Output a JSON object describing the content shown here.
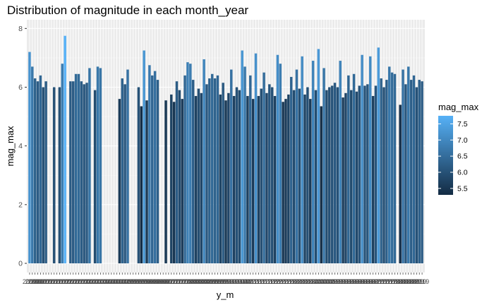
{
  "chart_data": {
    "type": "bar",
    "title": "Distribution of magnitude in each month_year",
    "xlabel": "y_m",
    "ylabel": "mag_max",
    "ylim": [
      0,
      8.2
    ],
    "yticks": [
      0,
      2,
      4,
      6,
      8
    ],
    "x_tick_labels_note_text": "2000 … 2019",
    "x_first_tick_label": "2000",
    "x_last_tick_label": "2019",
    "grid": true,
    "legend_position": "right",
    "legend": {
      "title": "mag_max",
      "ticks": [
        5.5,
        6.0,
        6.5,
        7.0,
        7.5
      ],
      "tick_labels": [
        "5.5",
        "6.0",
        "6.5",
        "7.0",
        "7.5"
      ],
      "range": [
        5.3,
        7.75
      ],
      "color_low": "#132B43",
      "color_high": "#56B1F7"
    },
    "values": [
      7.2,
      6.7,
      6.3,
      6.2,
      6.4,
      6.0,
      6.2,
      null,
      null,
      6.0,
      null,
      6.0,
      6.8,
      7.75,
      null,
      6.2,
      6.2,
      6.45,
      6.45,
      6.2,
      6.1,
      6.15,
      6.65,
      null,
      5.9,
      6.7,
      6.65,
      null,
      null,
      null,
      null,
      null,
      null,
      5.6,
      6.3,
      6.1,
      6.6,
      null,
      null,
      null,
      6.0,
      5.35,
      7.25,
      5.55,
      6.75,
      6.4,
      6.55,
      6.25,
      null,
      null,
      5.55,
      null,
      5.75,
      5.5,
      6.2,
      5.9,
      5.6,
      6.4,
      6.85,
      6.8,
      6.25,
      5.7,
      5.95,
      5.8,
      6.95,
      6.1,
      6.3,
      6.45,
      6.3,
      6.4,
      5.75,
      6.15,
      5.55,
      5.8,
      6.6,
      5.7,
      6.0,
      5.9,
      7.25,
      6.7,
      5.7,
      6.4,
      5.6,
      7.15,
      5.7,
      5.95,
      6.5,
      5.8,
      6.1,
      6.0,
      5.7,
      7.1,
      6.8,
      5.5,
      5.6,
      5.75,
      6.35,
      5.9,
      6.6,
      5.95,
      7.05,
      5.75,
      6.0,
      5.6,
      6.9,
      5.9,
      7.3,
      5.35,
      6.65,
      5.9,
      6.0,
      6.05,
      6.15,
      6.0,
      6.9,
      5.65,
      5.8,
      6.4,
      5.9,
      6.45,
      5.85,
      6.05,
      7.1,
      6.05,
      6.1,
      7.05,
      5.7,
      6.05,
      7.35,
      6.3,
      6.0,
      6.25,
      6.7,
      6.5,
      6.45,
      null,
      5.4,
      6.6,
      6.1,
      6.7,
      6.25,
      6.4,
      6.0,
      6.25,
      6.2
    ]
  }
}
